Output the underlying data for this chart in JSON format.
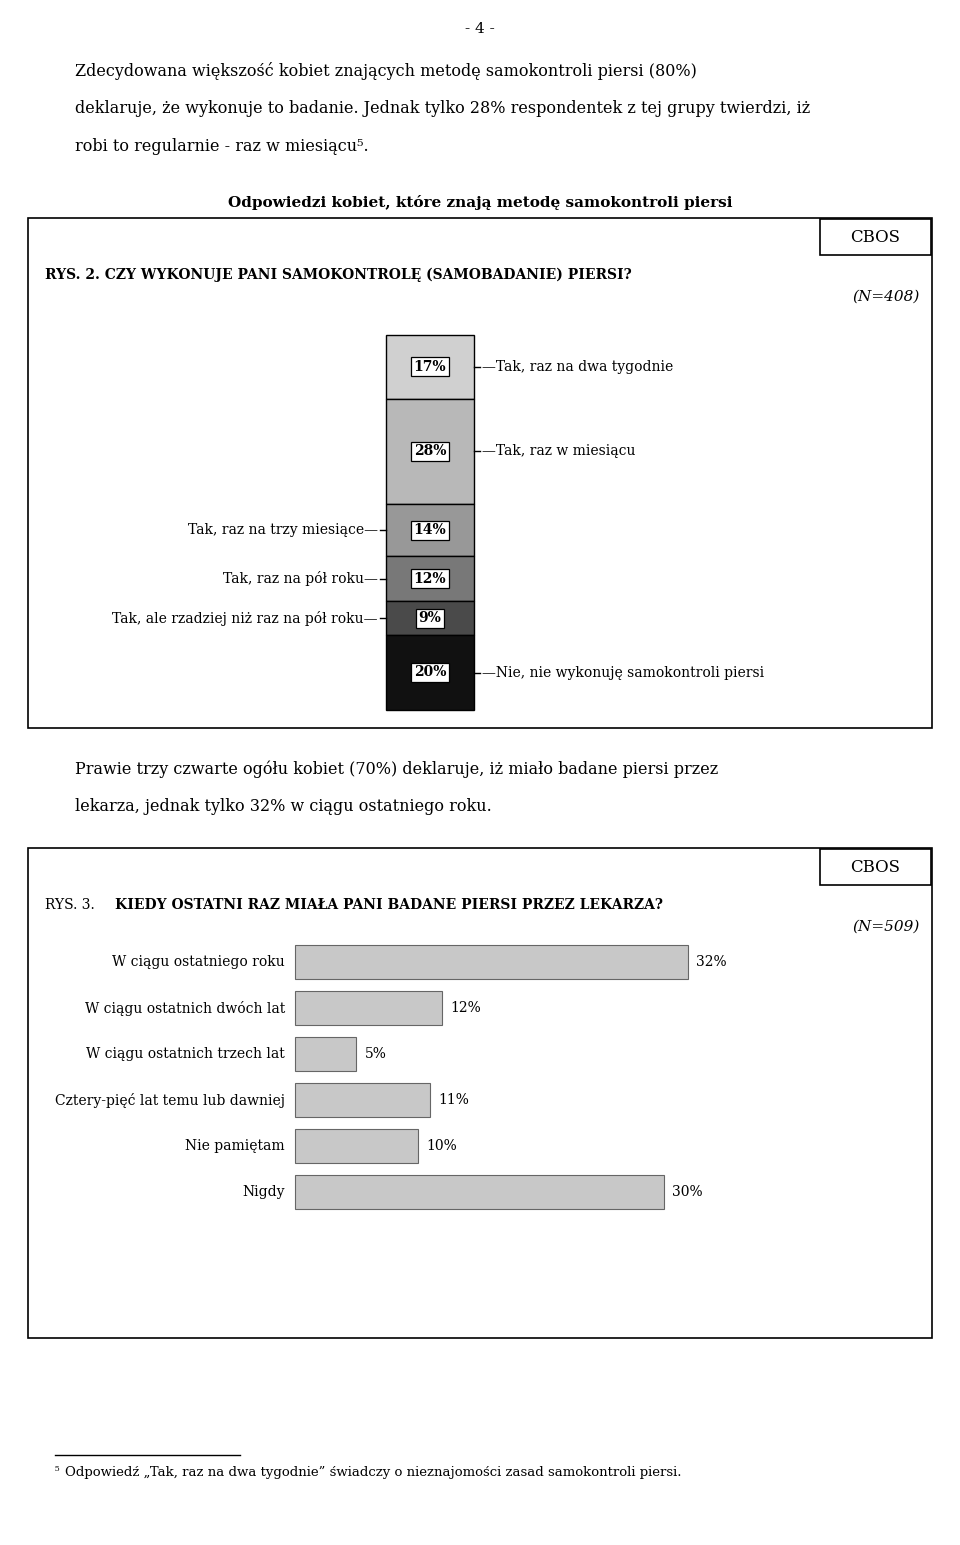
{
  "page_number": "- 4 -",
  "intro_text_line1": "Zdecydowana większość kobiet znających metodę samokontroli piersi (80%)",
  "intro_text_line2": "deklaruje, że wykonuje to badanie. Jednak tylko 28% respondentek z tej grupy twierdzi, iż",
  "intro_text_line3": "robi to regularnie - raz w miesiącu⁵.",
  "chart1_subtitle": "Odpowiedzi kobiet, które znają metodę samokontroli piersi",
  "chart1_cbos": "CBOS",
  "chart1_question": "RYS. 2. CZY WYKONUJE PANI SAMOKONTROLĘ (SAMOBADANIE) PIERSI?",
  "chart1_n": "(N=408)",
  "chart1_segments": [
    17,
    28,
    14,
    12,
    9,
    20
  ],
  "chart1_colors": [
    "#d0d0d0",
    "#b8b8b8",
    "#989898",
    "#787878",
    "#4a4a4a",
    "#111111"
  ],
  "chart1_labels_right": [
    "Tak, raz na dwa tygodnie",
    "Tak, raz w miesiącu",
    null,
    null,
    null,
    "Nie, nie wykonuję samokontroli piersi"
  ],
  "chart1_labels_left": [
    null,
    null,
    "Tak, raz na trzy miesiące",
    "Tak, raz na pół roku",
    "Tak, ale rzadziej niż raz na pół roku",
    null
  ],
  "middle_text_line1": "Prawie trzy czwarte ogółu kobiet (70%) deklaruje, iż miało badane piersi przez",
  "middle_text_line2": "lekarza, jednak tylko 32% w ciągu ostatniego roku.",
  "chart2_cbos": "CBOS",
  "chart2_question_prefix": "RYS. 3.",
  "chart2_question_bold": "KIEDY OSTATNI RAZ MIAŁA PANI BADANE PIERSI PRZEZ LEKARZA?",
  "chart2_n": "(N=509)",
  "chart2_categories": [
    "W ciągu ostatniego roku",
    "W ciągu ostatnich dwóch lat",
    "W ciągu ostatnich trzech lat",
    "Cztery-pięć lat temu lub dawniej",
    "Nie pamiętam",
    "Nigdy"
  ],
  "chart2_values": [
    32,
    12,
    5,
    11,
    10,
    30
  ],
  "chart2_bar_color": "#c8c8c8",
  "chart2_max": 35,
  "footnote_superscript": "5",
  "footnote_text": "Odpowiedź „Tak, raz na dwa tygodnie” świadczy o nieznajomości zasad samokontroli piersi."
}
